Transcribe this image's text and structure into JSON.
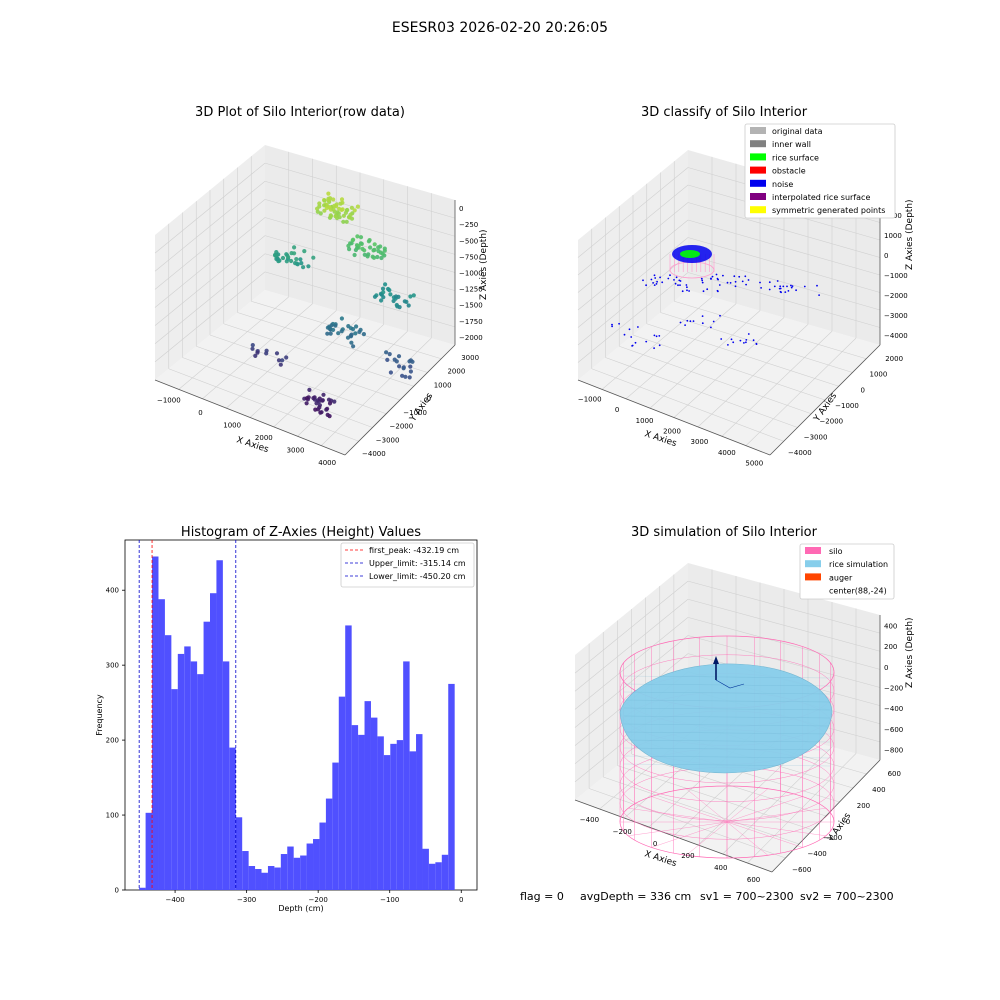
{
  "figure": {
    "suptitle": "ESESR03 2026-02-20 20:26:05",
    "footer": {
      "flag": "flag = 0",
      "avg_depth": "avgDepth = 336 cm",
      "sv1": "sv1 = 700~2300",
      "sv2": "sv2 = 700~2300"
    }
  },
  "colors": {
    "hist_bar": "#4d4dff",
    "first_peak": "#ff0000",
    "limits": "#0000cc",
    "silo": "#ff69b4",
    "rice": "#87ceeb",
    "auger": "#ff4500",
    "noise": "#0000ee",
    "rice_surface": "#00ff00"
  },
  "chart_data": [
    {
      "type": "scatter",
      "projection": "3d",
      "title": "3D Plot of Silo Interior(row data)",
      "xlabel": "X Axies",
      "ylabel": "Y Axies",
      "zlabel": "Z Axies (Depth)",
      "xticks": [
        "−1000",
        "0",
        "1000",
        "2000",
        "3000",
        "4000"
      ],
      "yticks": [
        "−4000",
        "−3000",
        "−2000",
        "−1000",
        "0",
        "1000",
        "2000",
        "3000"
      ],
      "zticks": [
        "−2000",
        "−1750",
        "−1500",
        "−1250",
        "−1000",
        "−750",
        "−500",
        "−250",
        "0"
      ],
      "colormap": "viridis",
      "clusters": [
        {
          "x": 1300,
          "y": 2500,
          "z": -250,
          "count": 60
        },
        {
          "x": 2200,
          "y": 2300,
          "z": -600,
          "count": 40
        },
        {
          "x": 600,
          "y": 1200,
          "z": -900,
          "count": 30
        },
        {
          "x": 3200,
          "y": 1800,
          "z": -1050,
          "count": 25
        },
        {
          "x": 2600,
          "y": -200,
          "z": -1300,
          "count": 30
        },
        {
          "x": 4100,
          "y": -200,
          "z": -1500,
          "count": 18
        },
        {
          "x": 1200,
          "y": -1600,
          "z": -1700,
          "count": 12
        },
        {
          "x": 2900,
          "y": -2600,
          "z": -1900,
          "count": 30
        }
      ]
    },
    {
      "type": "scatter",
      "projection": "3d",
      "title": "3D classify of Silo Interior",
      "xlabel": "X Axies",
      "ylabel": "Y Axies",
      "zlabel": "Z Axies (Depth)",
      "xticks": [
        "−1000",
        "0",
        "1000",
        "2000",
        "3000",
        "4000",
        "5000"
      ],
      "yticks": [
        "−4000",
        "−3000",
        "−2000",
        "−1000",
        "0",
        "1000",
        "2000"
      ],
      "zticks": [
        "−4000",
        "−3000",
        "−2000",
        "−1000",
        "0",
        "1000",
        "2000"
      ],
      "legend_position": "upper-right",
      "legend": [
        {
          "label": "original data",
          "color": "#b3b3b3"
        },
        {
          "label": "inner wall",
          "color": "#808080"
        },
        {
          "label": "rice surface",
          "color": "#00ff00"
        },
        {
          "label": "obstacle",
          "color": "#ff0000"
        },
        {
          "label": "noise",
          "color": "#0000ee"
        },
        {
          "label": "interpolated rice surface",
          "color": "#800080"
        },
        {
          "label": "symmetric generated points",
          "color": "#ffff00"
        }
      ]
    },
    {
      "type": "bar",
      "title": "Histogram of Z-Axies (Height) Values",
      "xlabel": "Depth (cm)",
      "ylabel": "Frequency",
      "xlim": [
        -470,
        22
      ],
      "ylim": [
        0,
        467
      ],
      "xticks": [
        -400,
        -300,
        -200,
        -100,
        0
      ],
      "yticks": [
        0,
        100,
        200,
        300,
        400
      ],
      "bin_start": -450.2,
      "bin_width": 9.0,
      "values": [
        3,
        103,
        445,
        388,
        340,
        268,
        315,
        325,
        305,
        288,
        358,
        396,
        440,
        305,
        190,
        97,
        52,
        32,
        28,
        23,
        32,
        30,
        48,
        58,
        43,
        46,
        62,
        68,
        90,
        122,
        170,
        258,
        353,
        220,
        207,
        252,
        230,
        205,
        180,
        195,
        200,
        305,
        185,
        208,
        55,
        35,
        37,
        47,
        275
      ],
      "lines": [
        {
          "name": "first_peak: -432.19 cm",
          "x": -432.19,
          "color": "#ff0000"
        },
        {
          "name": "Upper_limit: -315.14 cm",
          "x": -315.14,
          "color": "#0000cc"
        },
        {
          "name": "Lower_limit: -450.20 cm",
          "x": -450.2,
          "color": "#0000cc"
        }
      ],
      "legend_position": "upper-right",
      "grid": false
    },
    {
      "type": "surface",
      "projection": "3d",
      "title": "3D simulation of Silo Interior",
      "xlabel": "X Axies",
      "ylabel": "Y Axies",
      "zlabel": "Z Axies (Depth)",
      "xticks": [
        "−400",
        "−200",
        "0",
        "200",
        "400",
        "600"
      ],
      "yticks": [
        "−600",
        "−400",
        "−200",
        "0",
        "200",
        "400",
        "600"
      ],
      "zticks": [
        "−800",
        "−600",
        "−400",
        "−200",
        "0",
        "200",
        "400"
      ],
      "legend_position": "upper-right",
      "legend": [
        {
          "label": "silo",
          "color": "#ff69b4"
        },
        {
          "label": "rice simulation",
          "color": "#87ceeb"
        },
        {
          "label": "auger",
          "color": "#ff4500"
        },
        {
          "label": "center(88,-24)",
          "color": "#ffffff"
        }
      ]
    }
  ]
}
